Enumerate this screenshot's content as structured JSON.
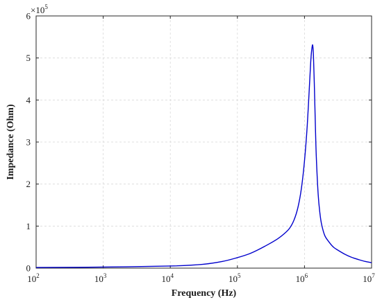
{
  "chart_data": {
    "type": "line",
    "xscale": "log",
    "xlabel": "Frequency (Hz)",
    "ylabel": "Impedance (Ohm)",
    "xlim": [
      100,
      10000000
    ],
    "ylim": [
      0,
      600000
    ],
    "grid": true,
    "y_multiplier_label": "×10",
    "y_multiplier_exponent": "5",
    "x_ticks": [
      {
        "value": 100,
        "base": "10",
        "exp": "2"
      },
      {
        "value": 1000,
        "base": "10",
        "exp": "3"
      },
      {
        "value": 10000,
        "base": "10",
        "exp": "4"
      },
      {
        "value": 100000,
        "base": "10",
        "exp": "5"
      },
      {
        "value": 1000000,
        "base": "10",
        "exp": "6"
      },
      {
        "value": 10000000,
        "base": "10",
        "exp": "7"
      }
    ],
    "y_ticks": [
      {
        "value": 0,
        "label": "0"
      },
      {
        "value": 100000,
        "label": "1"
      },
      {
        "value": 200000,
        "label": "2"
      },
      {
        "value": 300000,
        "label": "3"
      },
      {
        "value": 400000,
        "label": "4"
      },
      {
        "value": 500000,
        "label": "5"
      },
      {
        "value": 600000,
        "label": "6"
      }
    ],
    "series": [
      {
        "color": "#0000cc",
        "x": [
          100,
          1000,
          10000,
          30000,
          60000,
          100000,
          150000,
          200000,
          300000,
          400000,
          500000,
          600000,
          700000,
          800000,
          900000,
          1000000,
          1100000,
          1200000,
          1250000,
          1300000,
          1330000,
          1360000,
          1400000,
          1450000,
          1500000,
          1600000,
          1700000,
          1800000,
          2000000,
          2300000,
          2700000,
          3200000,
          4000000,
          5000000,
          6500000,
          8000000,
          10000000
        ],
        "y": [
          1500,
          2500,
          5000,
          9000,
          16000,
          25000,
          34000,
          43000,
          58000,
          70000,
          82000,
          95000,
          115000,
          145000,
          190000,
          255000,
          340000,
          450000,
          500000,
          527000,
          529000,
          505000,
          440000,
          345000,
          265000,
          175000,
          130000,
          104000,
          78000,
          63000,
          50000,
          42000,
          33000,
          26000,
          20000,
          16000,
          13000
        ]
      }
    ]
  }
}
